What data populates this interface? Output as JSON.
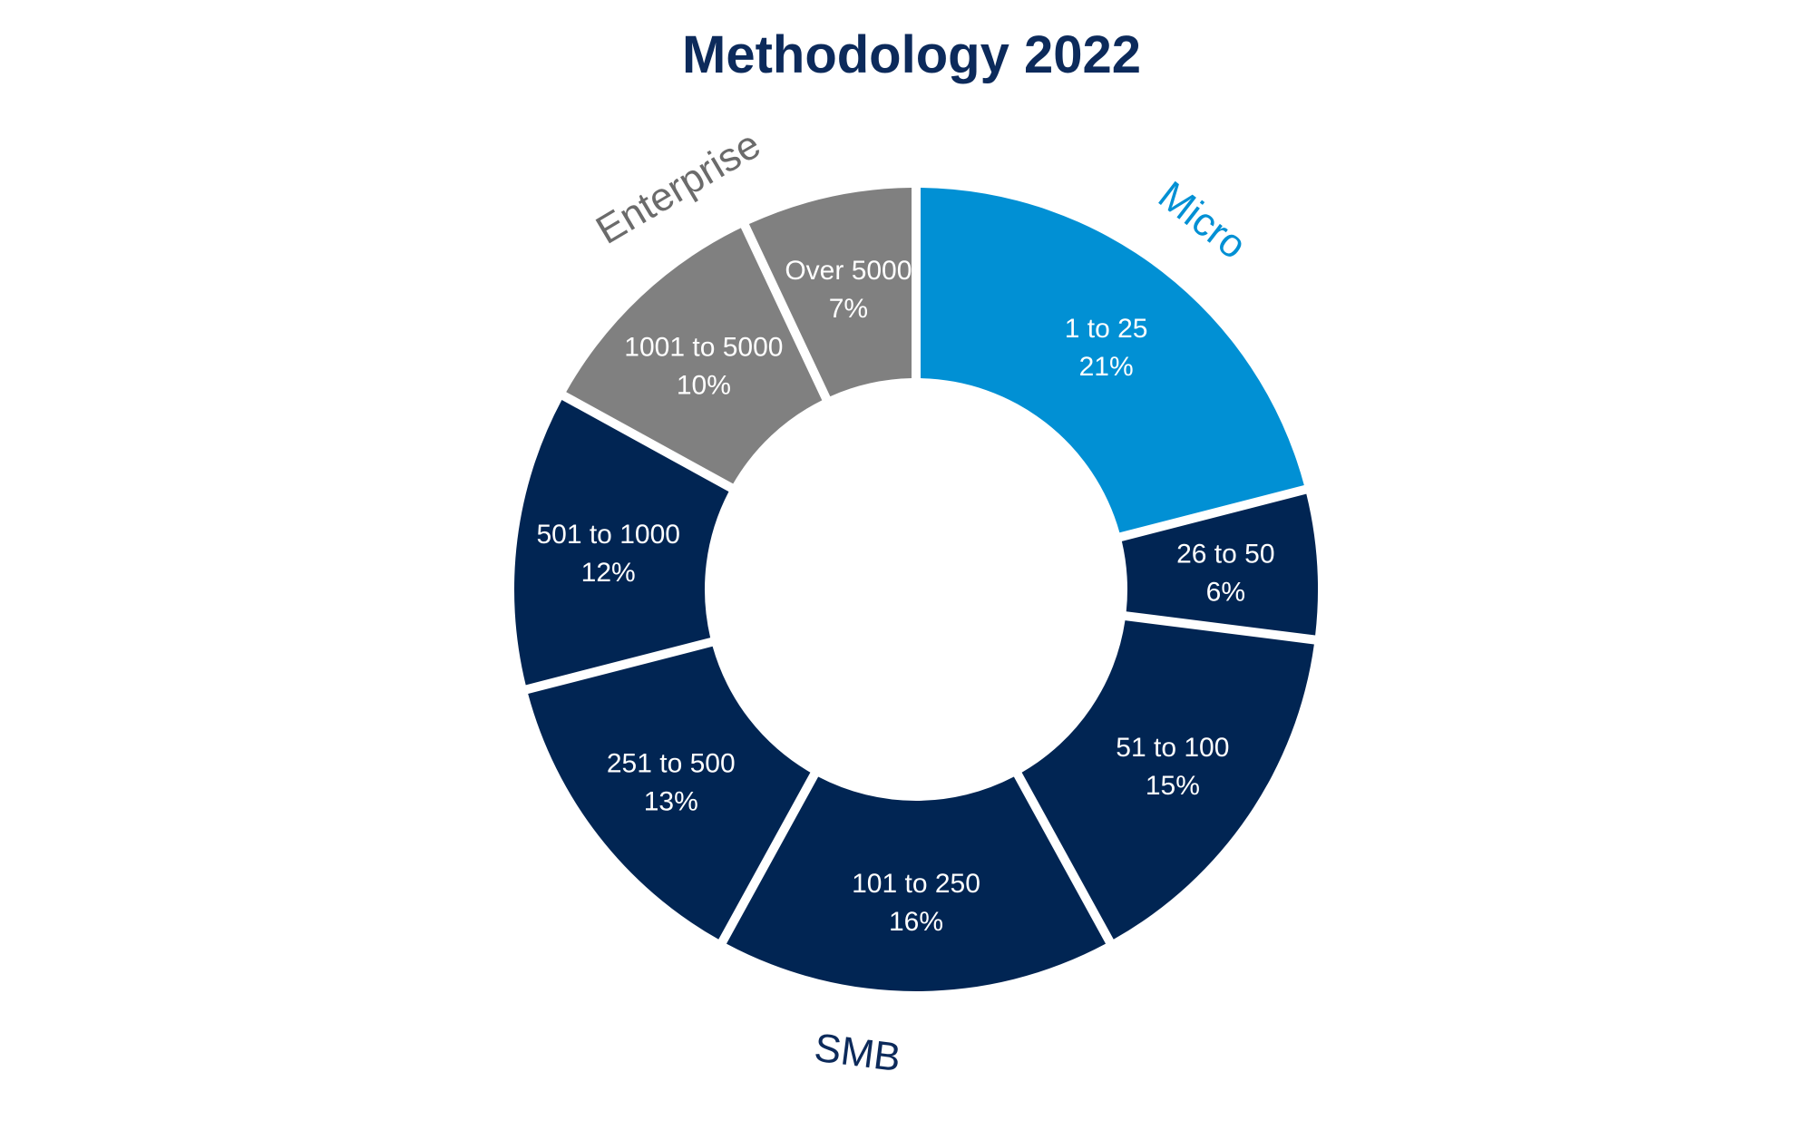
{
  "chart_data": {
    "type": "pie",
    "title": "Methodology 2022",
    "slices": [
      {
        "label": "1 to 25",
        "value": 21,
        "value_label": "21%",
        "group": "Micro",
        "color": "#0190d4"
      },
      {
        "label": "26 to 50",
        "value": 6,
        "value_label": "6%",
        "group": "SMB",
        "color": "#012553"
      },
      {
        "label": "51 to 100",
        "value": 15,
        "value_label": "15%",
        "group": "SMB",
        "color": "#012553"
      },
      {
        "label": "101 to 250",
        "value": 16,
        "value_label": "16%",
        "group": "SMB",
        "color": "#012553"
      },
      {
        "label": "251 to 500",
        "value": 13,
        "value_label": "13%",
        "group": "SMB",
        "color": "#012553"
      },
      {
        "label": "501 to 1000",
        "value": 12,
        "value_label": "12%",
        "group": "SMB",
        "color": "#012553"
      },
      {
        "label": "1001 to 5000",
        "value": 10,
        "value_label": "10%",
        "group": "Enterprise",
        "color": "#808080"
      },
      {
        "label": "Over 5000",
        "value": 7,
        "value_label": "7%",
        "group": "Enterprise",
        "color": "#808080"
      }
    ],
    "groups": [
      {
        "name": "Micro",
        "color": "#0190d4"
      },
      {
        "name": "SMB",
        "color": "#0c2a5b"
      },
      {
        "name": "Enterprise",
        "color": "#6b6b6b"
      }
    ]
  }
}
